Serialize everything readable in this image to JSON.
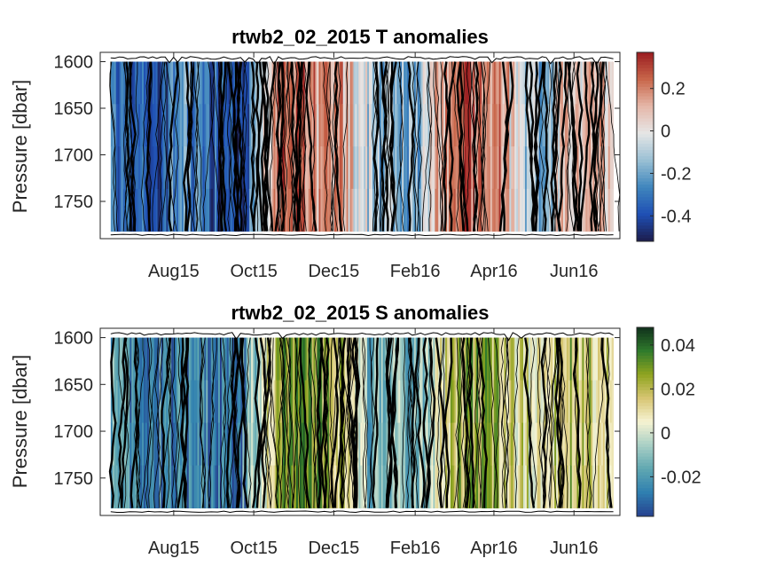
{
  "chart_data": [
    {
      "type": "heatmap",
      "title": "rtwb2_02_2015 T anomalies",
      "ylabel": "Pressure [dbar]",
      "xlabel": "",
      "x_ticks": [
        "Aug15",
        "Oct15",
        "Dec15",
        "Feb16",
        "Apr16",
        "Jun16"
      ],
      "x_tick_dates": [
        "2015-08-15",
        "2015-10-15",
        "2015-12-15",
        "2016-02-15",
        "2016-04-15",
        "2016-06-15"
      ],
      "xlim": [
        "2015-06-20",
        "2016-07-20"
      ],
      "ylim": [
        1790,
        1590
      ],
      "y_ticks": [
        1600,
        1650,
        1700,
        1750
      ],
      "data_pressure_range": [
        1600,
        1782
      ],
      "colorbar": {
        "ticks": [
          0.2,
          0,
          -0.2,
          -0.4
        ],
        "range": [
          -0.52,
          0.37
        ],
        "colormap": [
          "#1c1c4c",
          "#1f4fb4",
          "#3f86bd",
          "#9ac0d4",
          "#e6e6e6",
          "#e5b7a8",
          "#c8664a",
          "#9a1c20"
        ]
      },
      "time_profile": [
        {
          "date": "2015-07-01",
          "value": -0.3
        },
        {
          "date": "2015-07-20",
          "value": -0.35
        },
        {
          "date": "2015-08-05",
          "value": -0.42
        },
        {
          "date": "2015-08-20",
          "value": -0.22
        },
        {
          "date": "2015-09-05",
          "value": -0.3
        },
        {
          "date": "2015-09-20",
          "value": -0.4
        },
        {
          "date": "2015-10-05",
          "value": -0.45
        },
        {
          "date": "2015-10-20",
          "value": -0.1
        },
        {
          "date": "2015-11-05",
          "value": 0.28
        },
        {
          "date": "2015-11-20",
          "value": 0.22
        },
        {
          "date": "2015-12-05",
          "value": 0.12
        },
        {
          "date": "2015-12-20",
          "value": 0.15
        },
        {
          "date": "2016-01-05",
          "value": -0.02
        },
        {
          "date": "2016-01-20",
          "value": -0.12
        },
        {
          "date": "2016-02-05",
          "value": -0.18
        },
        {
          "date": "2016-02-20",
          "value": -0.15
        },
        {
          "date": "2016-03-05",
          "value": 0.12
        },
        {
          "date": "2016-03-20",
          "value": 0.25
        },
        {
          "date": "2016-04-05",
          "value": 0.22
        },
        {
          "date": "2016-04-20",
          "value": 0.18
        },
        {
          "date": "2016-05-05",
          "value": -0.05
        },
        {
          "date": "2016-05-20",
          "value": -0.15
        },
        {
          "date": "2016-06-05",
          "value": 0.02
        },
        {
          "date": "2016-06-20",
          "value": 0.08
        },
        {
          "date": "2016-07-10",
          "value": 0.05
        }
      ]
    },
    {
      "type": "heatmap",
      "title": "rtwb2_02_2015 S anomalies",
      "ylabel": "Pressure [dbar]",
      "xlabel": "",
      "x_ticks": [
        "Aug15",
        "Oct15",
        "Dec15",
        "Feb16",
        "Apr16",
        "Jun16"
      ],
      "x_tick_dates": [
        "2015-08-15",
        "2015-10-15",
        "2015-12-15",
        "2016-02-15",
        "2016-04-15",
        "2016-06-15"
      ],
      "xlim": [
        "2015-06-20",
        "2016-07-20"
      ],
      "ylim": [
        1790,
        1590
      ],
      "y_ticks": [
        1600,
        1650,
        1700,
        1750
      ],
      "data_pressure_range": [
        1600,
        1782
      ],
      "colorbar": {
        "ticks": [
          0.04,
          0.02,
          0,
          -0.02
        ],
        "range": [
          -0.038,
          0.048
        ],
        "colormap": [
          "#26418f",
          "#2f7fb0",
          "#5fa7b1",
          "#a8cfc5",
          "#f6f3d2",
          "#d7c572",
          "#8fa41f",
          "#2f7a2c",
          "#10301c"
        ]
      },
      "time_profile": [
        {
          "date": "2015-07-01",
          "value": -0.018
        },
        {
          "date": "2015-07-20",
          "value": -0.022
        },
        {
          "date": "2015-08-05",
          "value": -0.02
        },
        {
          "date": "2015-08-20",
          "value": -0.026
        },
        {
          "date": "2015-09-05",
          "value": -0.024
        },
        {
          "date": "2015-09-20",
          "value": -0.03
        },
        {
          "date": "2015-10-05",
          "value": -0.028
        },
        {
          "date": "2015-10-20",
          "value": 0.002
        },
        {
          "date": "2015-11-05",
          "value": 0.026
        },
        {
          "date": "2015-11-20",
          "value": 0.03
        },
        {
          "date": "2015-12-05",
          "value": 0.024
        },
        {
          "date": "2015-12-20",
          "value": 0.018
        },
        {
          "date": "2016-01-05",
          "value": -0.01
        },
        {
          "date": "2016-01-20",
          "value": -0.014
        },
        {
          "date": "2016-02-05",
          "value": -0.012
        },
        {
          "date": "2016-02-20",
          "value": -0.008
        },
        {
          "date": "2016-03-05",
          "value": 0.01
        },
        {
          "date": "2016-03-20",
          "value": 0.022
        },
        {
          "date": "2016-04-05",
          "value": 0.026
        },
        {
          "date": "2016-04-20",
          "value": 0.02
        },
        {
          "date": "2016-05-05",
          "value": 0.012
        },
        {
          "date": "2016-05-20",
          "value": 0.006
        },
        {
          "date": "2016-06-05",
          "value": 0.015
        },
        {
          "date": "2016-06-20",
          "value": 0.02
        },
        {
          "date": "2016-07-10",
          "value": 0.012
        }
      ]
    }
  ]
}
